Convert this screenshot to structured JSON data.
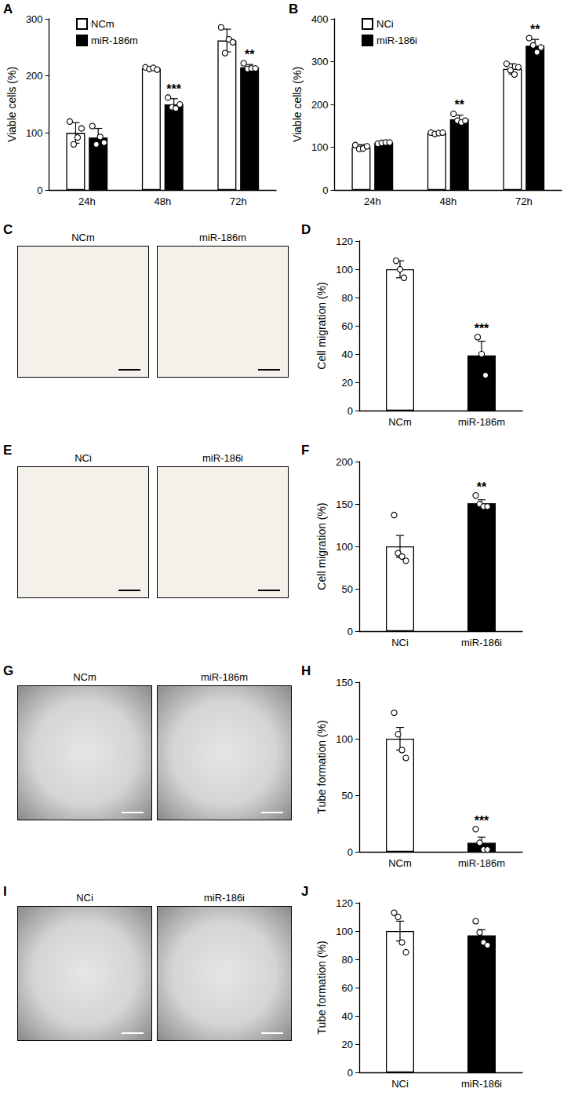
{
  "chart_data": [
    {
      "panel": "A",
      "type": "bar",
      "y_label": "Viable cells (%)",
      "categories": [
        "24h",
        "48h",
        "72h"
      ],
      "series": [
        {
          "name": "NCm",
          "color": "#ffffff",
          "values": [
            100,
            213,
            262
          ],
          "errors": [
            18,
            3,
            20
          ],
          "points": [
            [
              120,
              80,
              92,
              108
            ],
            [
              215,
              212,
              214,
              211
            ],
            [
              285,
              240,
              264,
              259
            ]
          ],
          "significance": [
            null,
            null,
            null
          ]
        },
        {
          "name": "miR-186m",
          "color": "#000000",
          "values": [
            92,
            150,
            215
          ],
          "errors": [
            16,
            10,
            5
          ],
          "points": [
            [
              112,
              80,
              93,
              83
            ],
            [
              162,
              145,
              143,
              150
            ],
            [
              222,
              212,
              213,
              213
            ]
          ],
          "significance": [
            null,
            "***",
            "**"
          ]
        }
      ],
      "ylim": [
        0,
        300
      ],
      "yticks": [
        0,
        100,
        200,
        300
      ],
      "grid": false,
      "legend": "upper left"
    },
    {
      "panel": "B",
      "type": "bar",
      "y_label": "Viable cells (%)",
      "categories": [
        "24h",
        "48h",
        "72h"
      ],
      "series": [
        {
          "name": "NCi",
          "color": "#ffffff",
          "values": [
            100,
            133,
            283
          ],
          "errors": [
            6,
            3,
            12
          ],
          "points": [
            [
              105,
              96,
              97,
              102
            ],
            [
              134,
              131,
              133,
              134
            ],
            [
              295,
              280,
              270,
              287
            ]
          ],
          "significance": [
            null,
            null,
            null
          ]
        },
        {
          "name": "miR-186i",
          "color": "#000000",
          "values": [
            110,
            165,
            337
          ],
          "errors": [
            3,
            10,
            15
          ],
          "points": [
            [
              108,
              110,
              111,
              111
            ],
            [
              178,
              162,
              158,
              162
            ],
            [
              355,
              338,
              322,
              333
            ]
          ],
          "significance": [
            null,
            "**",
            "**"
          ]
        }
      ],
      "ylim": [
        0,
        400
      ],
      "yticks": [
        0,
        100,
        200,
        300,
        400
      ],
      "grid": false,
      "legend": "upper left"
    },
    {
      "panel": "D",
      "type": "bar",
      "y_label": "Cell migration (%)",
      "categories": [
        "NCm",
        "miR-186m"
      ],
      "values": [
        100,
        39
      ],
      "colors": [
        "#ffffff",
        "#000000"
      ],
      "errors": [
        6,
        10
      ],
      "points": [
        [
          106,
          100,
          94
        ],
        [
          52,
          40,
          25
        ]
      ],
      "significance": [
        null,
        "***"
      ],
      "ylim": [
        0,
        120
      ],
      "yticks": [
        0,
        20,
        40,
        60,
        80,
        100,
        120
      ],
      "grid": false
    },
    {
      "panel": "F",
      "type": "bar",
      "y_label": "Cell migration (%)",
      "categories": [
        "NCi",
        "miR-186i"
      ],
      "values": [
        100,
        151
      ],
      "colors": [
        "#ffffff",
        "#000000"
      ],
      "errors": [
        13,
        4
      ],
      "points": [
        [
          137,
          92,
          88,
          83
        ],
        [
          160,
          150,
          147,
          147
        ]
      ],
      "significance": [
        null,
        "**"
      ],
      "ylim": [
        0,
        200
      ],
      "yticks": [
        0,
        50,
        100,
        150,
        200
      ],
      "grid": false
    },
    {
      "panel": "H",
      "type": "bar",
      "y_label": "Tube formation (%)",
      "categories": [
        "NCm",
        "miR-186m"
      ],
      "values": [
        100,
        8
      ],
      "colors": [
        "#ffffff",
        "#000000"
      ],
      "errors": [
        10,
        5
      ],
      "points": [
        [
          123,
          104,
          90,
          83
        ],
        [
          20,
          8,
          2,
          2
        ]
      ],
      "significance": [
        null,
        "***"
      ],
      "ylim": [
        0,
        150
      ],
      "yticks": [
        0,
        50,
        100,
        150
      ],
      "grid": false
    },
    {
      "panel": "J",
      "type": "bar",
      "y_label": "Tube formation (%)",
      "categories": [
        "NCi",
        "miR-186i"
      ],
      "values": [
        100,
        97
      ],
      "colors": [
        "#ffffff",
        "#000000"
      ],
      "errors": [
        7,
        4
      ],
      "points": [
        [
          113,
          110,
          92,
          85
        ],
        [
          107,
          99,
          92,
          90
        ]
      ],
      "significance": [
        null,
        null
      ],
      "ylim": [
        0,
        120
      ],
      "yticks": [
        0,
        20,
        40,
        60,
        80,
        100,
        120
      ],
      "grid": false
    }
  ],
  "image_panels": [
    {
      "panel": "C",
      "captions": [
        "NCm",
        "miR-186m"
      ]
    },
    {
      "panel": "E",
      "captions": [
        "NCi",
        "miR-186i"
      ]
    },
    {
      "panel": "G",
      "captions": [
        "NCm",
        "miR-186m"
      ]
    },
    {
      "panel": "I",
      "captions": [
        "NCi",
        "miR-186i"
      ]
    }
  ]
}
